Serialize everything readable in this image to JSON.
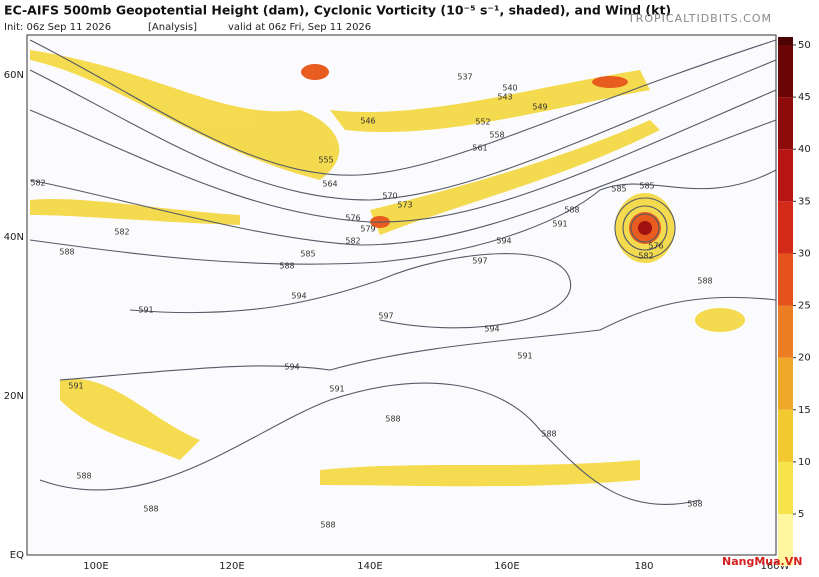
{
  "header": {
    "title": "EC-AIFS 500mb Geopotential Height (dam), Cyclonic Vorticity (10⁻⁵ s⁻¹, shaded), and Wind (kt)",
    "init": "Init: 06z Sep 11 2026",
    "analysis": "[Analysis]",
    "valid": "valid at 06z Fri, Sep 11 2026",
    "site": "TROPICALTIDBITS.COM"
  },
  "map": {
    "lat_labels": [
      "60N",
      "40N",
      "20N",
      "EQ"
    ],
    "lon_labels": [
      "100E",
      "120E",
      "140E",
      "160E",
      "180",
      "160W"
    ],
    "contour_labels": [
      "537",
      "540",
      "543",
      "549",
      "546",
      "552",
      "558",
      "561",
      "555",
      "564",
      "570",
      "573",
      "576",
      "579",
      "582",
      "585",
      "588",
      "591",
      "594",
      "597",
      "597",
      "594",
      "591",
      "588",
      "585",
      "585",
      "576",
      "582",
      "588",
      "594",
      "591",
      "594",
      "591",
      "588",
      "588",
      "591",
      "588",
      "588",
      "588",
      "588",
      "582",
      "582",
      "588"
    ]
  },
  "colorbar": {
    "ticks": [
      5,
      10,
      15,
      20,
      25,
      30,
      35,
      40,
      45,
      50
    ]
  },
  "watermark": "NangMua.VN"
}
